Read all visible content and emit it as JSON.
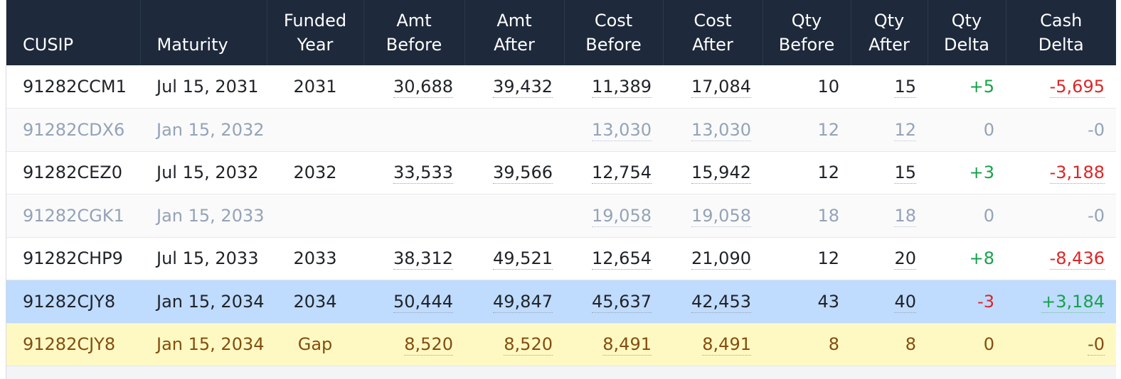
{
  "columns": [
    {
      "l1": "",
      "l2": "CUSIP"
    },
    {
      "l1": "",
      "l2": "Maturity"
    },
    {
      "l1": "Funded",
      "l2": "Year"
    },
    {
      "l1": "Amt",
      "l2": "Before"
    },
    {
      "l1": "Amt",
      "l2": "After"
    },
    {
      "l1": "Cost",
      "l2": "Before"
    },
    {
      "l1": "Cost",
      "l2": "After"
    },
    {
      "l1": "Qty",
      "l2": "Before"
    },
    {
      "l1": "Qty",
      "l2": "After"
    },
    {
      "l1": "Qty",
      "l2": "Delta"
    },
    {
      "l1": "Cash",
      "l2": "Delta"
    }
  ],
  "rows": [
    {
      "cusip": "91282CCM1",
      "maturity": "Jul 15, 2031",
      "funded_year": "2031",
      "amt_before": "30,688",
      "amt_after": "39,432",
      "cost_before": "11,389",
      "cost_after": "17,084",
      "qty_before": "10",
      "qty_after": "15",
      "qty_delta": "+5",
      "cash_delta": "-5,695"
    },
    {
      "cusip": "91282CDX6",
      "maturity": "Jan 15, 2032",
      "funded_year": "",
      "amt_before": "",
      "amt_after": "",
      "cost_before": "13,030",
      "cost_after": "13,030",
      "qty_before": "12",
      "qty_after": "12",
      "qty_delta": "0",
      "cash_delta": "-0"
    },
    {
      "cusip": "91282CEZ0",
      "maturity": "Jul 15, 2032",
      "funded_year": "2032",
      "amt_before": "33,533",
      "amt_after": "39,566",
      "cost_before": "12,754",
      "cost_after": "15,942",
      "qty_before": "12",
      "qty_after": "15",
      "qty_delta": "+3",
      "cash_delta": "-3,188"
    },
    {
      "cusip": "91282CGK1",
      "maturity": "Jan 15, 2033",
      "funded_year": "",
      "amt_before": "",
      "amt_after": "",
      "cost_before": "19,058",
      "cost_after": "19,058",
      "qty_before": "18",
      "qty_after": "18",
      "qty_delta": "0",
      "cash_delta": "-0"
    },
    {
      "cusip": "91282CHP9",
      "maturity": "Jul 15, 2033",
      "funded_year": "2033",
      "amt_before": "38,312",
      "amt_after": "49,521",
      "cost_before": "12,654",
      "cost_after": "21,090",
      "qty_before": "12",
      "qty_after": "20",
      "qty_delta": "+8",
      "cash_delta": "-8,436"
    },
    {
      "cusip": "91282CJY8",
      "maturity": "Jan 15, 2034",
      "funded_year": "2034",
      "amt_before": "50,444",
      "amt_after": "49,847",
      "cost_before": "45,637",
      "cost_after": "42,453",
      "qty_before": "43",
      "qty_after": "40",
      "qty_delta": "-3",
      "cash_delta": "+3,184"
    },
    {
      "cusip": "91282CJY8",
      "maturity": "Jan 15, 2034",
      "funded_year": "Gap",
      "amt_before": "8,520",
      "amt_after": "8,520",
      "cost_before": "8,491",
      "cost_after": "8,491",
      "qty_before": "8",
      "qty_after": "8",
      "qty_delta": "0",
      "cash_delta": "-0"
    }
  ],
  "colors": {
    "header_bg": "#1e293b",
    "selected_row": "#bfdbfe",
    "gap_row": "#fef9c3",
    "positive": "#16a34a",
    "negative": "#dc2626",
    "muted_text": "#94a3b8"
  }
}
